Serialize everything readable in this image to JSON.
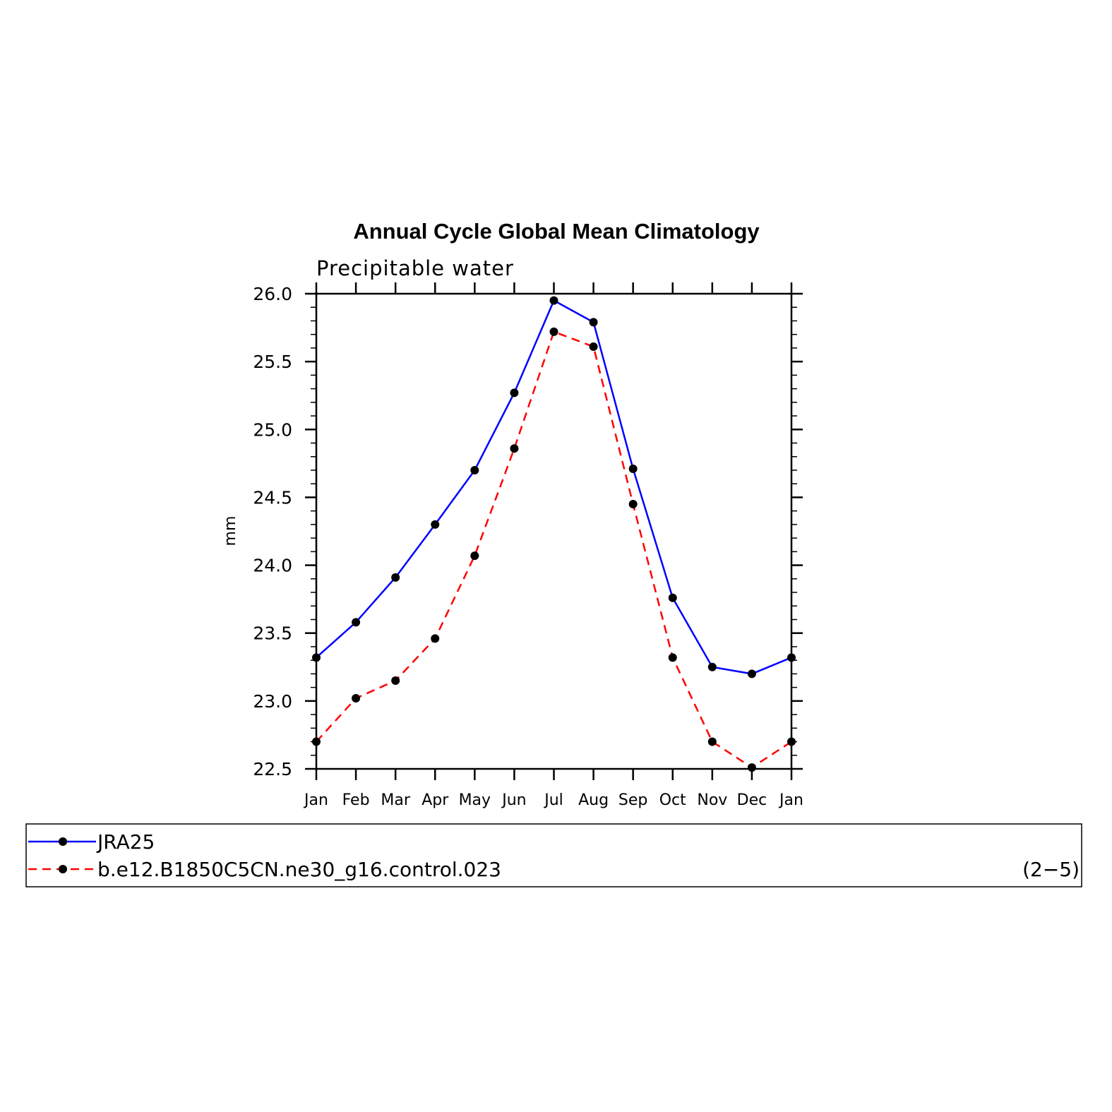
{
  "chart_data": {
    "type": "line",
    "title": "Annual Cycle Global Mean Climatology",
    "subtitle": "Precipitable water",
    "xlabel": "",
    "ylabel": "mm",
    "categories": [
      "Jan",
      "Feb",
      "Mar",
      "Apr",
      "May",
      "Jun",
      "Jul",
      "Aug",
      "Sep",
      "Oct",
      "Nov",
      "Dec",
      "Jan"
    ],
    "ylim": [
      22.5,
      26.0
    ],
    "ytick_values": [
      22.5,
      23.0,
      23.5,
      24.0,
      24.5,
      25.0,
      25.5,
      26.0
    ],
    "ytick_labels": [
      "22.5",
      "23.0",
      "23.5",
      "24.0",
      "24.5",
      "25.0",
      "25.5",
      "26.0"
    ],
    "legend_position": "bottom",
    "series": [
      {
        "name": "JRA25",
        "color": "#0000ff",
        "style": "solid",
        "marker": "dot",
        "values": [
          23.32,
          23.58,
          23.91,
          24.3,
          24.7,
          25.27,
          25.95,
          25.79,
          24.71,
          23.76,
          23.25,
          23.2,
          23.32
        ]
      },
      {
        "name": "b.e12.B1850C5CN.ne30_g16.control.023",
        "color": "#ff0000",
        "style": "dashed",
        "marker": "dot",
        "values": [
          22.7,
          23.02,
          23.15,
          23.46,
          24.07,
          24.86,
          25.72,
          25.61,
          24.45,
          23.32,
          22.7,
          22.51,
          22.7
        ]
      }
    ],
    "panel_label": "(2−5)"
  }
}
